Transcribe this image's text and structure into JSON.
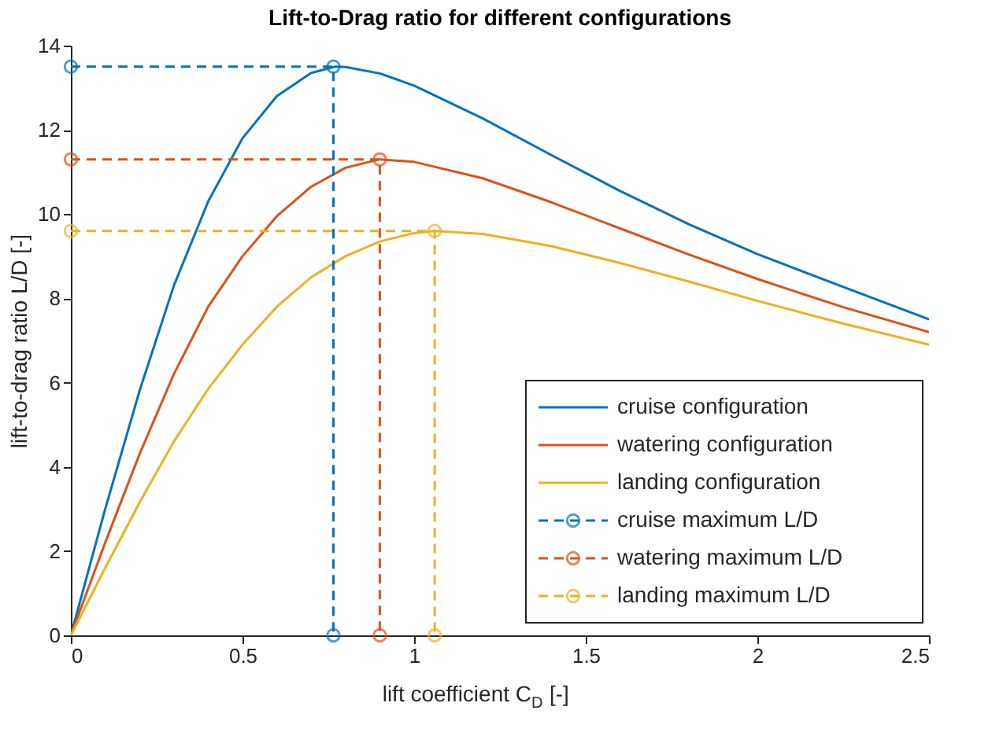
{
  "chart_data": {
    "type": "line",
    "title": "Lift-to-Drag ratio for different configurations",
    "xlabel": "lift coefficient C$_{D}$ [-]",
    "ylabel": "lift-to-drag ratio L/D [-]",
    "xlim": [
      0,
      2.5
    ],
    "xticks": [
      0,
      0.5,
      1,
      1.5,
      2,
      2.5
    ],
    "ylim": [
      0,
      14
    ],
    "yticks": [
      0,
      2,
      4,
      6,
      8,
      10,
      12,
      14
    ],
    "grid": false,
    "legend": "bottom right",
    "series": [
      {
        "name": "cruise configuration",
        "color": "#0072bd",
        "line_style": "solid",
        "marker": "none",
        "x": [
          0,
          0.1,
          0.2,
          0.3,
          0.4,
          0.5,
          0.6,
          0.7,
          0.77,
          0.8,
          0.9,
          1.0,
          1.2,
          1.4,
          1.6,
          1.8,
          2.0,
          2.25,
          2.5
        ],
        "values": [
          0,
          3.0,
          5.8,
          8.3,
          10.3,
          11.8,
          12.8,
          13.35,
          13.5,
          13.49,
          13.34,
          13.05,
          12.27,
          11.4,
          10.55,
          9.76,
          9.05,
          8.27,
          7.5
        ]
      },
      {
        "name": "watering configuration",
        "color": "#d95319",
        "line_style": "solid",
        "marker": "none",
        "x": [
          0,
          0.1,
          0.2,
          0.3,
          0.4,
          0.5,
          0.6,
          0.7,
          0.8,
          0.9,
          1.0,
          1.2,
          1.4,
          1.6,
          1.8,
          2.0,
          2.25,
          2.5
        ],
        "values": [
          0,
          2.2,
          4.3,
          6.2,
          7.8,
          9.0,
          9.95,
          10.65,
          11.1,
          11.3,
          11.24,
          10.85,
          10.28,
          9.66,
          9.04,
          8.46,
          7.79,
          7.2
        ]
      },
      {
        "name": "landing configuration",
        "color": "#edb120",
        "line_style": "solid",
        "marker": "none",
        "x": [
          0,
          0.1,
          0.2,
          0.3,
          0.4,
          0.5,
          0.6,
          0.7,
          0.8,
          0.9,
          1.0,
          1.06,
          1.2,
          1.4,
          1.6,
          1.8,
          2.0,
          2.25,
          2.5
        ],
        "values": [
          0,
          1.6,
          3.15,
          4.6,
          5.85,
          6.9,
          7.8,
          8.5,
          9.0,
          9.35,
          9.55,
          9.6,
          9.53,
          9.24,
          8.84,
          8.4,
          7.94,
          7.4,
          6.9
        ]
      },
      {
        "name": "cruise maximum L/D",
        "color": "#0072bd",
        "line_style": "dashed",
        "marker": "circle",
        "x": [
          0,
          0.765,
          0.765
        ],
        "values": [
          13.5,
          13.5,
          0
        ]
      },
      {
        "name": "watering maximum L/D",
        "color": "#d95319",
        "line_style": "dashed",
        "marker": "circle",
        "x": [
          0,
          0.9,
          0.9
        ],
        "values": [
          11.3,
          11.3,
          0
        ]
      },
      {
        "name": "landing maximum L/D",
        "color": "#edb120",
        "line_style": "dashed",
        "marker": "circle",
        "x": [
          0,
          1.06,
          1.06
        ],
        "values": [
          9.6,
          9.6,
          0
        ]
      }
    ]
  }
}
